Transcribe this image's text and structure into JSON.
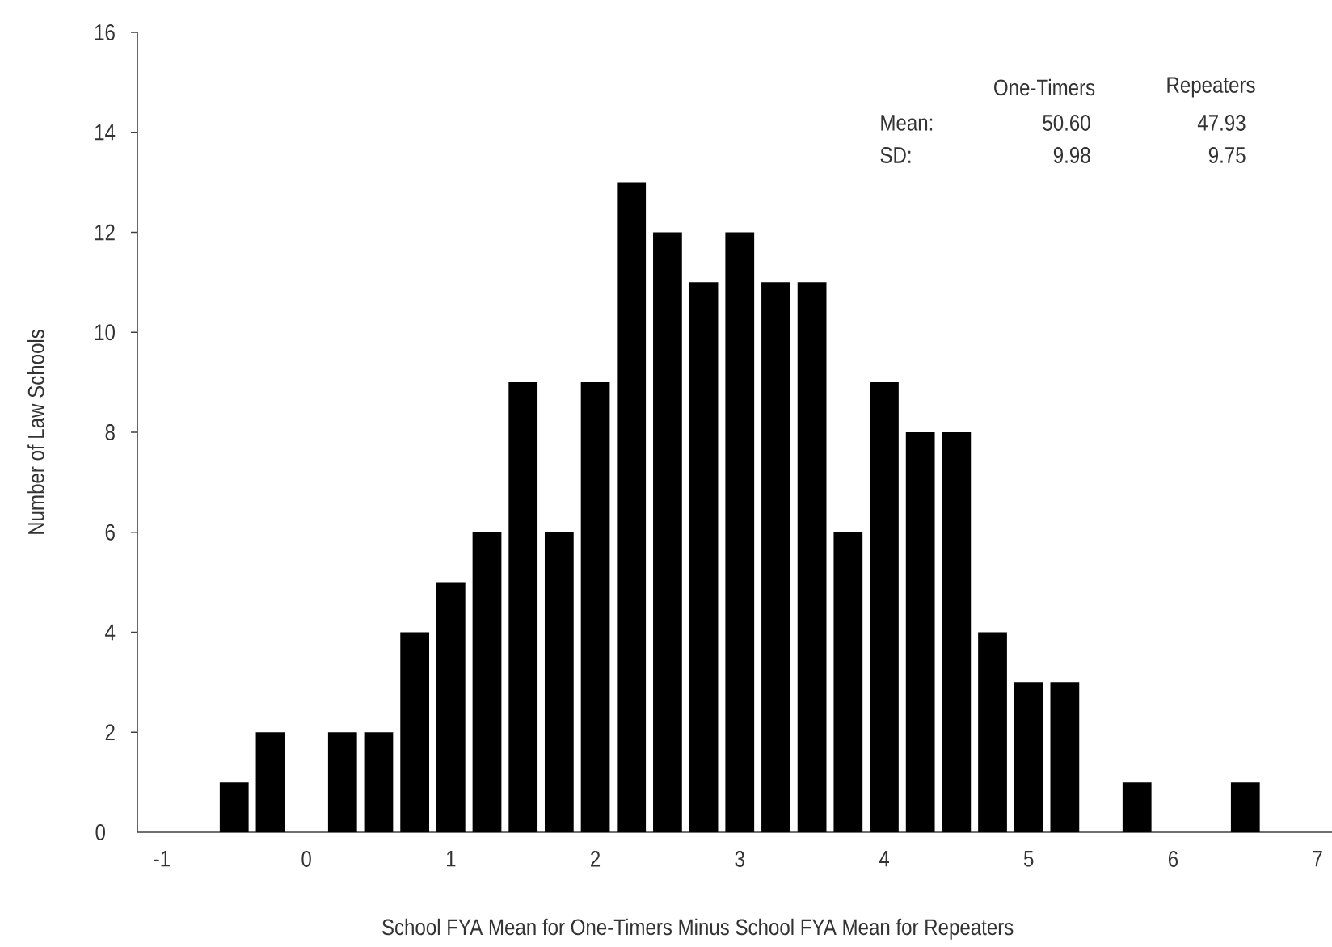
{
  "chart_data": {
    "type": "histogram",
    "xlabel": "School FYA Mean for One-Timers Minus School FYA Mean for Repeaters",
    "ylabel": "Number of Law Schools",
    "bins": [
      -0.625,
      -0.375,
      -0.125,
      0.125,
      0.375,
      0.625,
      0.875,
      1.125,
      1.375,
      1.625,
      1.875,
      2.125,
      2.375,
      2.625,
      2.875,
      3.125,
      3.375,
      3.625,
      3.875,
      4.125,
      4.375,
      4.625,
      4.875,
      5.125,
      5.375,
      5.625,
      5.875,
      6.125,
      6.375,
      6.625
    ],
    "values": [
      1,
      2,
      0,
      2,
      2,
      4,
      5,
      6,
      9,
      6,
      9,
      13,
      12,
      11,
      12,
      11,
      11,
      6,
      9,
      8,
      8,
      4,
      3,
      3,
      0,
      1,
      0,
      0,
      1
    ],
    "color": "#000000",
    "xlim": [
      -1.17,
      7.1
    ],
    "xticks": [
      -1,
      0,
      1,
      2,
      3,
      4,
      5,
      6,
      7
    ],
    "ylim": [
      0,
      16
    ],
    "yticks": [
      0,
      2,
      4,
      6,
      8,
      10,
      12,
      14,
      16
    ],
    "annotations": [
      "One-Timers",
      "Repeaters",
      "Mean:",
      "50.60",
      "47.93",
      "SD:",
      "9.98",
      "9.75"
    ]
  }
}
